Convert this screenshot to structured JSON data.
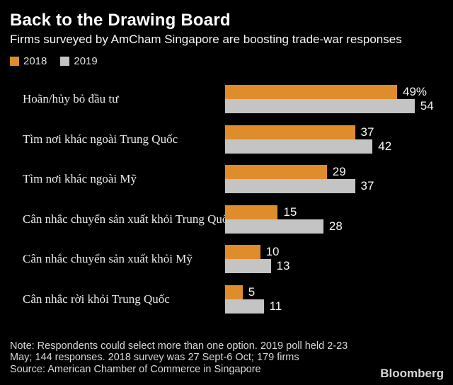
{
  "header": {
    "title": "Back to the Drawing Board",
    "subtitle": "Firms surveyed by AmCham Singapore are boosting trade-war responses"
  },
  "colors": {
    "background": "#000000",
    "series_2018": "#de8c2c",
    "series_2019": "#c4c4c4",
    "text": "#ffffff",
    "muted_text": "#d9d9d9"
  },
  "chart_data": {
    "type": "bar",
    "orientation": "horizontal",
    "title": "Back to the Drawing Board",
    "subtitle": "Firms surveyed by AmCham Singapore are boosting trade-war responses",
    "unit": "percent of firms",
    "xlim": [
      0,
      54
    ],
    "grid": false,
    "legend_position": "top-left",
    "categories": [
      "Hoãn/hủy bỏ đầu tư",
      "Tìm nơi khác ngoài Trung Quốc",
      "Tìm nơi khác ngoài Mỹ",
      "Cân nhắc chuyển sản xuất khỏi Trung Quốc",
      "Cân nhắc chuyển sản xuất khỏi Mỹ",
      "Cân nhắc rời khỏi Trung Quốc"
    ],
    "series": [
      {
        "name": "2018",
        "color": "#de8c2c",
        "values": [
          49,
          37,
          29,
          15,
          10,
          5
        ],
        "value_labels": [
          "49%",
          "37",
          "29",
          "15",
          "10",
          "5"
        ]
      },
      {
        "name": "2019",
        "color": "#c4c4c4",
        "values": [
          54,
          42,
          37,
          28,
          13,
          11
        ],
        "value_labels": [
          "54",
          "42",
          "37",
          "28",
          "13",
          "11"
        ]
      }
    ]
  },
  "footer": {
    "note_lines": [
      "Note: Respondents could select more than one option. 2019 poll held 2-23",
      "May; 144 responses. 2018 survey was 27 Sept-6 Oct; 179 firms",
      "Source: American Chamber of Commerce in Singapore"
    ],
    "brand": "Bloomberg"
  }
}
